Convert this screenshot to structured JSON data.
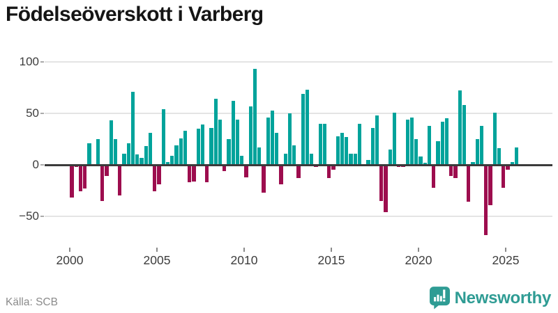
{
  "title": "Födelseöverskott i Varberg",
  "footer": {
    "source": "Källa: SCB",
    "brand": "Newsworthy"
  },
  "colors": {
    "positive_bar": "#00a39b",
    "negative_bar": "#9d0d4e",
    "zero_axis": "#3b3b3b",
    "gridline": "#e4e4e4",
    "tick_label": "#3d3d3d",
    "source_text": "#8b8b8b",
    "brand_teal": "#2f9c94",
    "logo_glyph": "#ffffff"
  },
  "icons": {
    "brand_icon": "newsworthy-speech-bubble-bar-chart"
  },
  "chart_data": {
    "type": "bar",
    "title": "Födelseöverskott i Varberg",
    "frequency": "quarterly",
    "xlabel": "",
    "ylabel": "",
    "grid": true,
    "legend": false,
    "ylim": [
      -75,
      105
    ],
    "yticks": [
      100,
      50,
      0,
      -50
    ],
    "ytick_labels": [
      "100",
      "50",
      "0",
      "−50"
    ],
    "xticks": [
      2000,
      2005,
      2010,
      2015,
      2020,
      2025
    ],
    "series": [
      {
        "year": 2000,
        "quarters": [
          -32,
          -2,
          -26,
          -23
        ]
      },
      {
        "year": 2001,
        "quarters": [
          21,
          0,
          25,
          -35
        ]
      },
      {
        "year": 2002,
        "quarters": [
          -11,
          43,
          25,
          -30
        ]
      },
      {
        "year": 2003,
        "quarters": [
          11,
          21,
          71,
          10
        ]
      },
      {
        "year": 2004,
        "quarters": [
          7,
          18,
          31,
          -26
        ]
      },
      {
        "year": 2005,
        "quarters": [
          -19,
          54,
          3,
          9
        ]
      },
      {
        "year": 2006,
        "quarters": [
          19,
          26,
          33,
          -17
        ]
      },
      {
        "year": 2007,
        "quarters": [
          -16,
          35,
          39,
          -17
        ]
      },
      {
        "year": 2008,
        "quarters": [
          36,
          64,
          44,
          -6
        ]
      },
      {
        "year": 2009,
        "quarters": [
          25,
          62,
          44,
          9
        ]
      },
      {
        "year": 2010,
        "quarters": [
          -12,
          57,
          93,
          17
        ]
      },
      {
        "year": 2011,
        "quarters": [
          -27,
          46,
          53,
          31
        ]
      },
      {
        "year": 2012,
        "quarters": [
          -19,
          11,
          50,
          19
        ]
      },
      {
        "year": 2013,
        "quarters": [
          -13,
          69,
          73,
          11
        ]
      },
      {
        "year": 2014,
        "quarters": [
          -2,
          40,
          40,
          -13
        ]
      },
      {
        "year": 2015,
        "quarters": [
          -5,
          28,
          31,
          27
        ]
      },
      {
        "year": 2016,
        "quarters": [
          11,
          11,
          40,
          0
        ]
      },
      {
        "year": 2017,
        "quarters": [
          5,
          36,
          48,
          -35
        ]
      },
      {
        "year": 2018,
        "quarters": [
          -46,
          15,
          51,
          -2
        ]
      },
      {
        "year": 2019,
        "quarters": [
          -2,
          44,
          46,
          25
        ]
      },
      {
        "year": 2020,
        "quarters": [
          8,
          2,
          38,
          -22
        ]
      },
      {
        "year": 2021,
        "quarters": [
          23,
          42,
          45,
          -11
        ]
      },
      {
        "year": 2022,
        "quarters": [
          -13,
          72,
          58,
          -36
        ]
      },
      {
        "year": 2023,
        "quarters": [
          3,
          25,
          38,
          -68
        ]
      },
      {
        "year": 2024,
        "quarters": [
          -39,
          51,
          16,
          -22
        ]
      },
      {
        "year": 2025,
        "quarters": [
          -5,
          3,
          17
        ]
      }
    ]
  }
}
